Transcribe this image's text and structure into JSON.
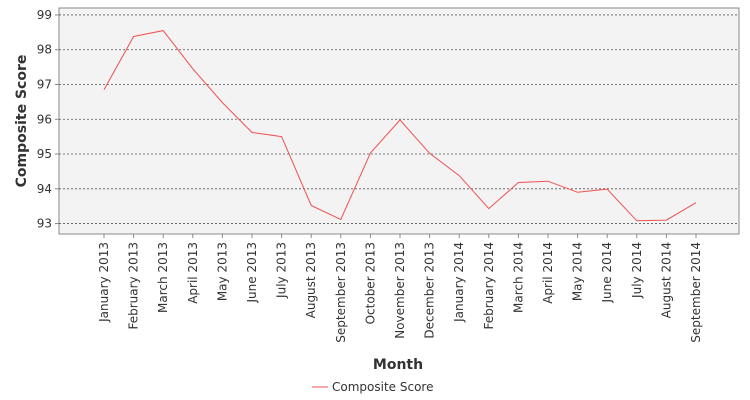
{
  "chart_data": {
    "type": "line",
    "title": "",
    "xlabel": "Month",
    "ylabel": "Composite Score",
    "categories": [
      "January 2013",
      "February 2013",
      "March 2013",
      "April 2013",
      "May 2013",
      "June 2013",
      "July 2013",
      "August 2013",
      "September 2013",
      "October 2013",
      "November 2013",
      "December 2013",
      "January 2014",
      "February 2014",
      "March 2014",
      "April 2014",
      "May 2014",
      "June 2014",
      "July 2014",
      "August 2014",
      "September 2014"
    ],
    "series": [
      {
        "name": "Composite Score",
        "color": "#f05050",
        "values": [
          96.85,
          98.38,
          98.55,
          97.45,
          96.48,
          95.62,
          95.5,
          93.52,
          93.12,
          95.03,
          95.98,
          95.02,
          94.38,
          93.43,
          94.18,
          94.22,
          93.9,
          93.99,
          93.08,
          93.1,
          93.6
        ]
      }
    ],
    "ylim": [
      92.7,
      99.2
    ],
    "yticks": [
      93,
      94,
      95,
      96,
      97,
      98,
      99
    ],
    "grid": true,
    "legend_position": "bottom"
  },
  "colors": {
    "plot_background": "#f3f3f3",
    "gridline": "#555555",
    "axis": "#888888"
  }
}
